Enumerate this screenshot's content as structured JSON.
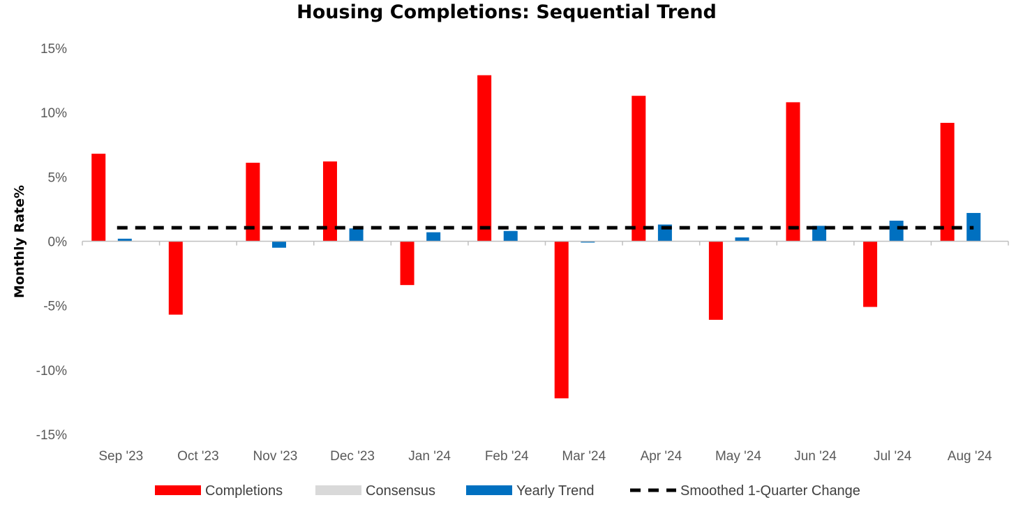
{
  "chart_data": {
    "type": "bar",
    "title": "Housing Completions: Sequential Trend",
    "ylabel": "Monthly Rate%",
    "xlabel": "",
    "categories": [
      "Sep '23",
      "Oct '23",
      "Nov '23",
      "Dec '23",
      "Jan '24",
      "Feb '24",
      "Mar '24",
      "Apr '24",
      "May '24",
      "Jun '24",
      "Jul '24",
      "Aug '24"
    ],
    "series": [
      {
        "name": "Completions",
        "kind": "bar",
        "color": "#FF0000",
        "values": [
          6.8,
          -5.7,
          6.1,
          6.2,
          -3.4,
          12.9,
          -12.2,
          11.3,
          -6.1,
          10.8,
          -5.1,
          9.2
        ]
      },
      {
        "name": "Consensus",
        "kind": "bar",
        "color": "#D9D9D9",
        "values": [
          null,
          null,
          null,
          null,
          null,
          null,
          null,
          null,
          null,
          null,
          null,
          null
        ]
      },
      {
        "name": "Yearly Trend",
        "kind": "bar",
        "color": "#0070C0",
        "values": [
          0.2,
          0.0,
          -0.5,
          1.0,
          0.7,
          0.8,
          -0.1,
          1.3,
          0.3,
          1.2,
          1.6,
          2.2
        ]
      },
      {
        "name": "Smoothed 1-Quarter Change",
        "kind": "line",
        "style": "dashed",
        "color": "#000000",
        "values": [
          1.05,
          1.05,
          1.05,
          1.05,
          1.05,
          1.05,
          1.05,
          1.05,
          1.05,
          1.05,
          1.05,
          1.05
        ]
      }
    ],
    "yticks": [
      "15%",
      "10%",
      "5%",
      "0%",
      "-5%",
      "-10%",
      "-15%"
    ],
    "ytick_values": [
      15,
      10,
      5,
      0,
      -5,
      -10,
      -15
    ],
    "ylim": [
      -15,
      15
    ],
    "grid": false,
    "legend": "bottom"
  }
}
